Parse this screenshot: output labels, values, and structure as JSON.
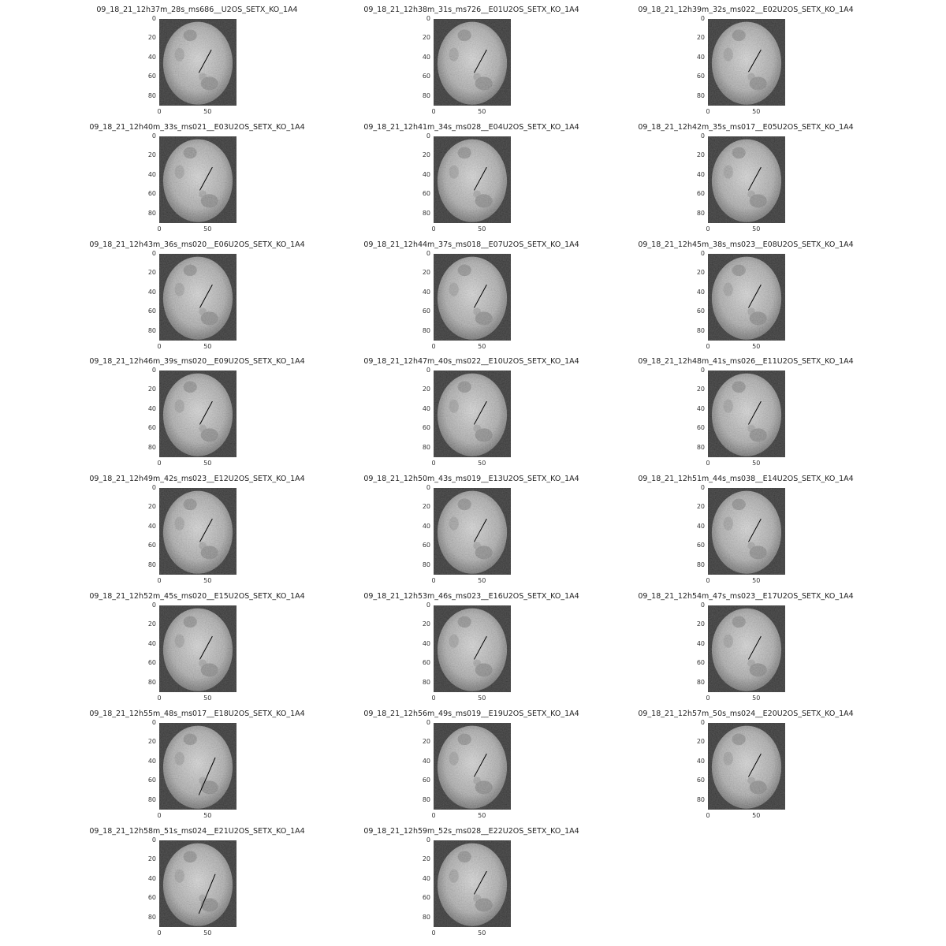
{
  "panels": [
    {
      "title": "09_18_21_12h37m_28s_ms686__U2OS_SETX_KO_1A4",
      "line": [
        54,
        32,
        41,
        56
      ]
    },
    {
      "title": "09_18_21_12h38m_31s_ms726__E01U2OS_SETX_KO_1A4",
      "line": [
        55,
        32,
        42,
        56
      ]
    },
    {
      "title": "09_18_21_12h39m_32s_ms022__E02U2OS_SETX_KO_1A4",
      "line": [
        55,
        32,
        42,
        55
      ]
    },
    {
      "title": "09_18_21_12h40m_33s_ms021__E03U2OS_SETX_KO_1A4",
      "line": [
        55,
        32,
        42,
        56
      ]
    },
    {
      "title": "09_18_21_12h41m_34s_ms028__E04U2OS_SETX_KO_1A4",
      "line": [
        55,
        32,
        42,
        56
      ]
    },
    {
      "title": "09_18_21_12h42m_35s_ms017__E05U2OS_SETX_KO_1A4",
      "line": [
        55,
        32,
        42,
        56
      ]
    },
    {
      "title": "09_18_21_12h43m_36s_ms020__E06U2OS_SETX_KO_1A4",
      "line": [
        55,
        32,
        42,
        56
      ]
    },
    {
      "title": "09_18_21_12h44m_37s_ms018__E07U2OS_SETX_KO_1A4",
      "line": [
        55,
        32,
        42,
        56
      ]
    },
    {
      "title": "09_18_21_12h45m_38s_ms023__E08U2OS_SETX_KO_1A4",
      "line": [
        55,
        32,
        42,
        56
      ]
    },
    {
      "title": "09_18_21_12h46m_39s_ms020__E09U2OS_SETX_KO_1A4",
      "line": [
        55,
        32,
        42,
        56
      ]
    },
    {
      "title": "09_18_21_12h47m_40s_ms022__E10U2OS_SETX_KO_1A4",
      "line": [
        55,
        32,
        42,
        56
      ]
    },
    {
      "title": "09_18_21_12h48m_41s_ms026__E11U2OS_SETX_KO_1A4",
      "line": [
        55,
        32,
        42,
        56
      ]
    },
    {
      "title": "09_18_21_12h49m_42s_ms023__E12U2OS_SETX_KO_1A4",
      "line": [
        55,
        32,
        42,
        56
      ]
    },
    {
      "title": "09_18_21_12h50m_43s_ms019__E13U2OS_SETX_KO_1A4",
      "line": [
        55,
        32,
        42,
        56
      ]
    },
    {
      "title": "09_18_21_12h51m_44s_ms038__E14U2OS_SETX_KO_1A4",
      "line": [
        55,
        32,
        42,
        56
      ]
    },
    {
      "title": "09_18_21_12h52m_45s_ms020__E15U2OS_SETX_KO_1A4",
      "line": [
        55,
        32,
        42,
        56
      ]
    },
    {
      "title": "09_18_21_12h53m_46s_ms023__E16U2OS_SETX_KO_1A4",
      "line": [
        55,
        32,
        42,
        56
      ]
    },
    {
      "title": "09_18_21_12h54m_47s_ms023__E17U2OS_SETX_KO_1A4",
      "line": [
        55,
        32,
        42,
        56
      ]
    },
    {
      "title": "09_18_21_12h55m_48s_ms017__E18U2OS_SETX_KO_1A4",
      "line": [
        58,
        36,
        41,
        75
      ]
    },
    {
      "title": "09_18_21_12h56m_49s_ms019__E19U2OS_SETX_KO_1A4",
      "line": [
        55,
        32,
        42,
        56
      ]
    },
    {
      "title": "09_18_21_12h57m_50s_ms024__E20U2OS_SETX_KO_1A4",
      "line": [
        55,
        32,
        42,
        56
      ]
    },
    {
      "title": "09_18_21_12h58m_51s_ms024__E21U2OS_SETX_KO_1A4",
      "line": [
        58,
        35,
        41,
        76
      ]
    },
    {
      "title": "09_18_21_12h59m_52s_ms028__E22U2OS_SETX_KO_1A4",
      "line": [
        55,
        32,
        42,
        56
      ]
    }
  ],
  "yticks": [
    "0",
    "20",
    "40",
    "60",
    "80"
  ],
  "xticks": [
    "0",
    "50"
  ]
}
